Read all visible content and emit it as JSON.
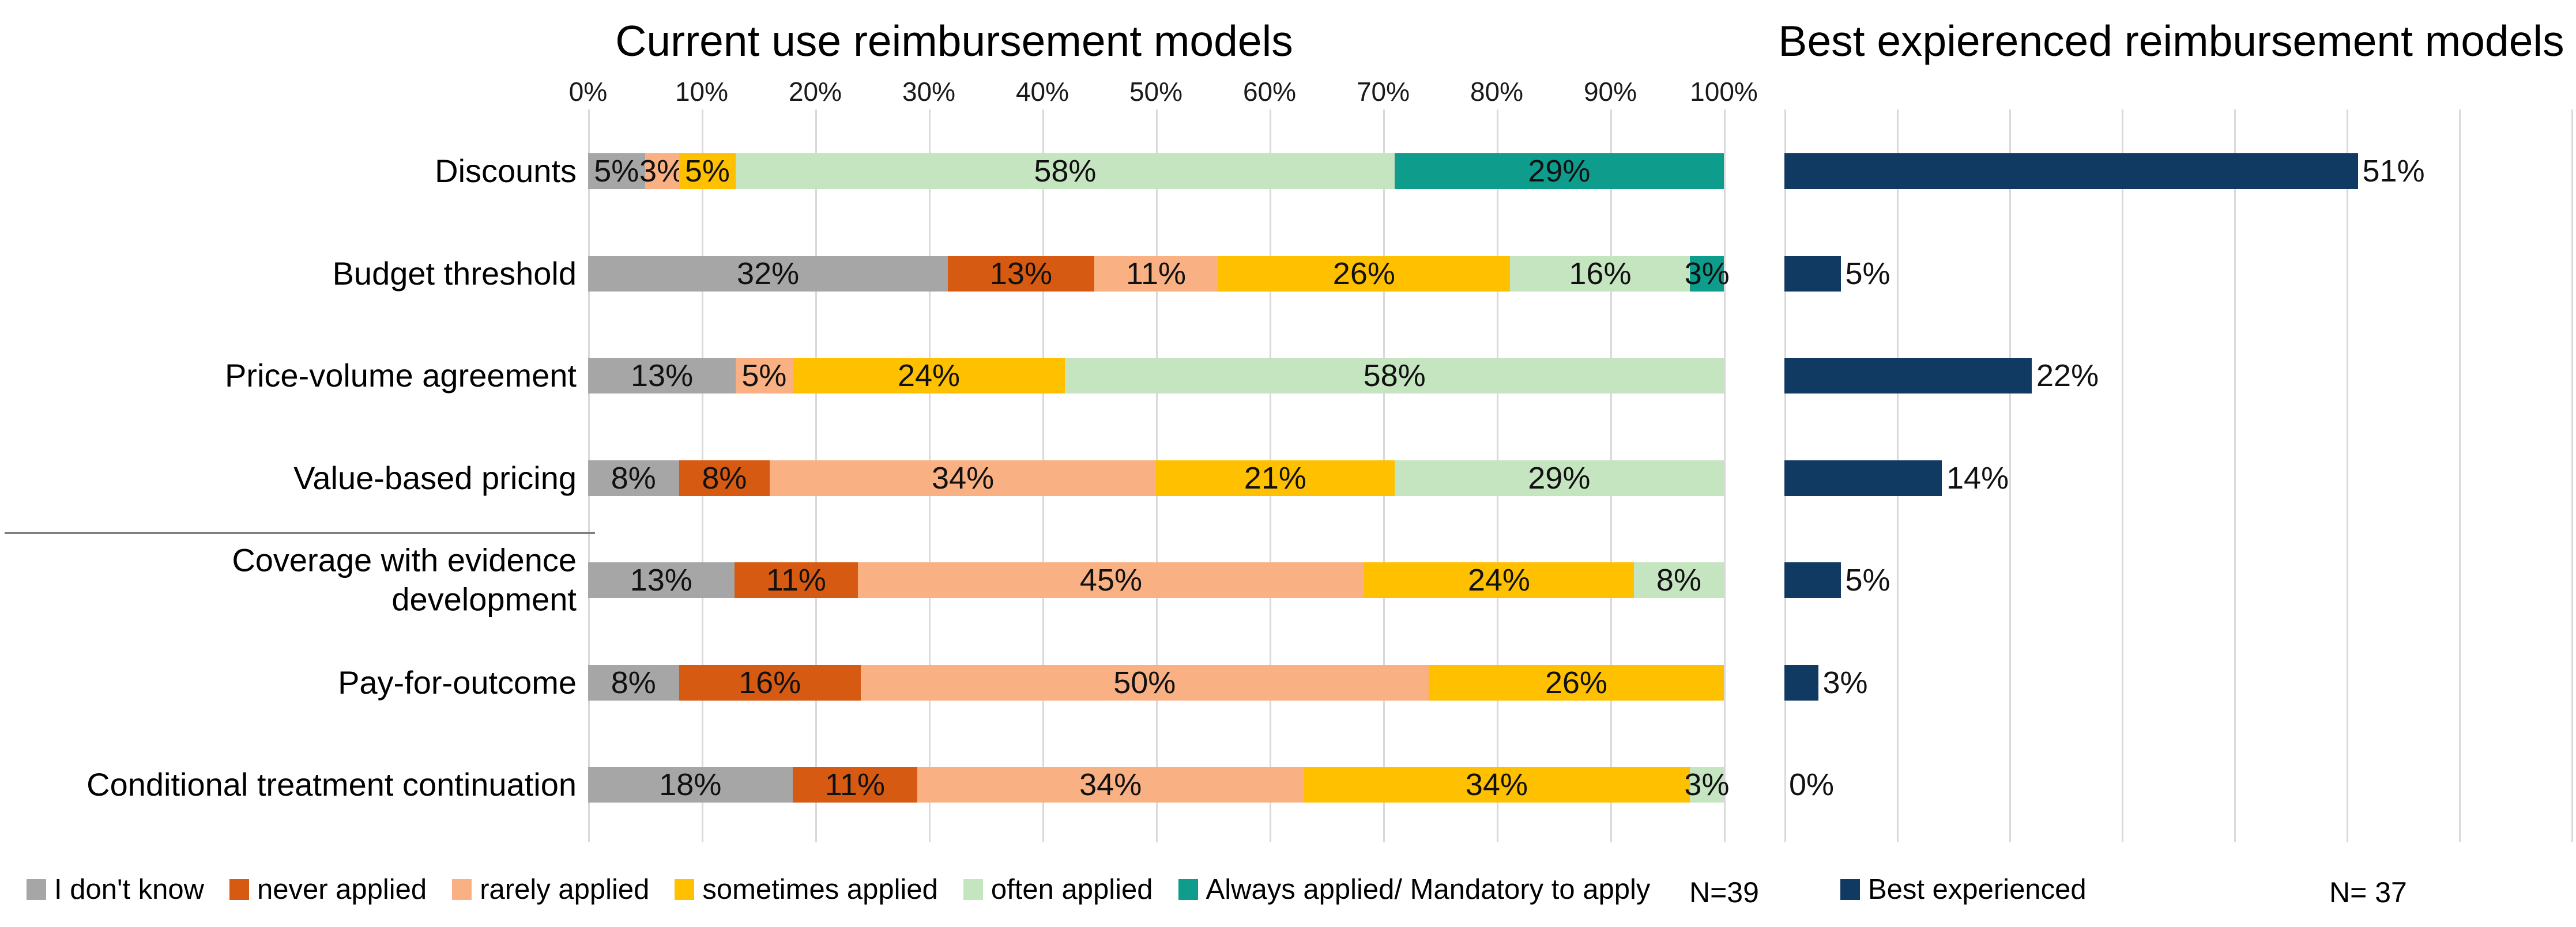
{
  "chart_data": [
    {
      "type": "bar",
      "subtype": "stacked-horizontal-100",
      "title": "Current use reimbursement models",
      "n_label": "N=39",
      "xlim": [
        0,
        100
      ],
      "tick_labels": [
        "0%",
        "10%",
        "20%",
        "30%",
        "40%",
        "50%",
        "60%",
        "70%",
        "80%",
        "90%",
        "100%"
      ],
      "grid": true,
      "legend_position": "bottom",
      "categories": [
        "Discounts",
        "Budget threshold",
        "Price-volume agreement",
        "Value-based pricing",
        "Coverage with evidence\ndevelopment",
        "Pay-for-outcome",
        "Conditional treatment continuation"
      ],
      "series": [
        {
          "name": "I don't know",
          "color": "#a6a6a6",
          "values": [
            5,
            32,
            13,
            8,
            13,
            8,
            18
          ]
        },
        {
          "name": "never applied",
          "color": "#d65a12",
          "values": [
            0,
            13,
            0,
            8,
            11,
            16,
            11
          ]
        },
        {
          "name": "rarely applied",
          "color": "#f9b184",
          "values": [
            3,
            11,
            5,
            34,
            45,
            50,
            34
          ]
        },
        {
          "name": "sometimes applied",
          "color": "#ffc000",
          "values": [
            5,
            26,
            24,
            21,
            24,
            26,
            34
          ]
        },
        {
          "name": "often applied",
          "color": "#c5e4c0",
          "values": [
            58,
            16,
            58,
            29,
            8,
            0,
            3
          ]
        },
        {
          "name": "Always applied/ Mandatory to apply",
          "color": "#0e9c8d",
          "values": [
            29,
            3,
            0,
            0,
            0,
            0,
            0
          ]
        }
      ]
    },
    {
      "type": "bar",
      "subtype": "horizontal",
      "title": "Best expierenced reimbursement models",
      "n_label": "N= 37",
      "xlim": [
        0,
        70
      ],
      "grid": true,
      "categories": [
        "Discounts",
        "Budget threshold",
        "Price-volume agreement",
        "Value-based pricing",
        "Coverage with evidence development",
        "Pay-for-outcome",
        "Conditional treatment continuation"
      ],
      "series": [
        {
          "name": "Best experienced",
          "color": "#113a63",
          "values": [
            51,
            5,
            22,
            14,
            5,
            3,
            0
          ]
        }
      ]
    }
  ],
  "colors": {
    "gridline": "#d9d9d9",
    "divider": "#7f7f7f",
    "background": "#ffffff"
  }
}
